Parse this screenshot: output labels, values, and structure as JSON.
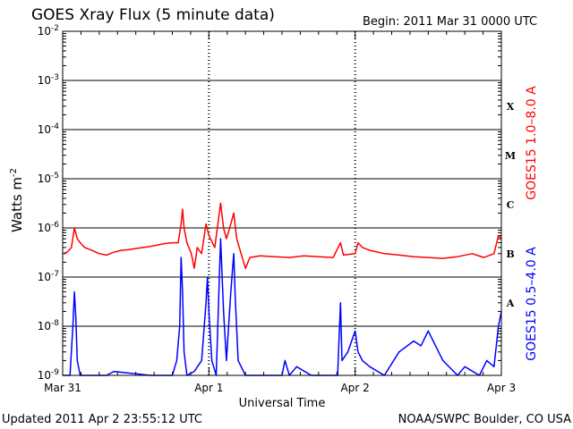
{
  "chart_data": {
    "type": "line",
    "title": "GOES Xray Flux (5 minute data)",
    "begin_label": "Begin:  2011 Mar 31 0000 UTC",
    "xlabel": "Universal Time",
    "ylabel_base": "Watts m",
    "ylabel_exp": "-2",
    "y_scale": "log",
    "ylim": [
      1e-09,
      0.01
    ],
    "grid": true,
    "y_ticks": [
      {
        "value": 0.01,
        "exp": "-2"
      },
      {
        "value": 0.001,
        "exp": "-3"
      },
      {
        "value": 0.0001,
        "exp": "-4"
      },
      {
        "value": 1e-05,
        "exp": "-5"
      },
      {
        "value": 1e-06,
        "exp": "-6"
      },
      {
        "value": 1e-07,
        "exp": "-7"
      },
      {
        "value": 1e-08,
        "exp": "-8"
      },
      {
        "value": 1e-09,
        "exp": "-9"
      }
    ],
    "tick_base": "10",
    "x_ticks": [
      {
        "day": 0,
        "label": "Mar 31"
      },
      {
        "day": 1,
        "label": "Apr 1"
      },
      {
        "day": 2,
        "label": "Apr 2"
      },
      {
        "day": 3,
        "label": "Apr 3"
      }
    ],
    "flare_classes": [
      {
        "label": "X",
        "value": 0.0003
      },
      {
        "label": "M",
        "value": 3e-05
      },
      {
        "label": "C",
        "value": 3e-06
      },
      {
        "label": "B",
        "value": 3e-07
      },
      {
        "label": "A",
        "value": 3e-08
      }
    ],
    "series": [
      {
        "name": "GOES15 1.0–8.0 A",
        "color": "#ff0000",
        "points": [
          [
            0.0,
            3e-07
          ],
          [
            0.03,
            3.2e-07
          ],
          [
            0.06,
            4e-07
          ],
          [
            0.08,
            1e-06
          ],
          [
            0.1,
            6e-07
          ],
          [
            0.12,
            5e-07
          ],
          [
            0.15,
            4e-07
          ],
          [
            0.2,
            3.5e-07
          ],
          [
            0.25,
            3e-07
          ],
          [
            0.3,
            2.8e-07
          ],
          [
            0.35,
            3.2e-07
          ],
          [
            0.4,
            3.5e-07
          ],
          [
            0.45,
            3.6e-07
          ],
          [
            0.5,
            3.8e-07
          ],
          [
            0.55,
            4e-07
          ],
          [
            0.6,
            4.2e-07
          ],
          [
            0.65,
            4.5e-07
          ],
          [
            0.7,
            4.8e-07
          ],
          [
            0.75,
            5e-07
          ],
          [
            0.79,
            5e-07
          ],
          [
            0.81,
            1.2e-06
          ],
          [
            0.82,
            2.4e-06
          ],
          [
            0.83,
            1e-06
          ],
          [
            0.85,
            5e-07
          ],
          [
            0.88,
            3e-07
          ],
          [
            0.9,
            1.5e-07
          ],
          [
            0.92,
            4e-07
          ],
          [
            0.95,
            3e-07
          ],
          [
            0.98,
            1.2e-06
          ],
          [
            1.0,
            7e-07
          ],
          [
            1.04,
            4e-07
          ],
          [
            1.08,
            3.2e-06
          ],
          [
            1.1,
            1e-06
          ],
          [
            1.12,
            6e-07
          ],
          [
            1.15,
            1.2e-06
          ],
          [
            1.17,
            2e-06
          ],
          [
            1.19,
            6e-07
          ],
          [
            1.22,
            3e-07
          ],
          [
            1.25,
            1.5e-07
          ],
          [
            1.28,
            2.5e-07
          ],
          [
            1.35,
            2.7e-07
          ],
          [
            1.45,
            2.6e-07
          ],
          [
            1.55,
            2.5e-07
          ],
          [
            1.65,
            2.7e-07
          ],
          [
            1.75,
            2.6e-07
          ],
          [
            1.85,
            2.5e-07
          ],
          [
            1.9,
            5e-07
          ],
          [
            1.92,
            2.8e-07
          ],
          [
            2.0,
            3e-07
          ],
          [
            2.02,
            5e-07
          ],
          [
            2.05,
            4e-07
          ],
          [
            2.1,
            3.5e-07
          ],
          [
            2.2,
            3e-07
          ],
          [
            2.3,
            2.8e-07
          ],
          [
            2.4,
            2.6e-07
          ],
          [
            2.5,
            2.5e-07
          ],
          [
            2.6,
            2.4e-07
          ],
          [
            2.7,
            2.6e-07
          ],
          [
            2.8,
            3e-07
          ],
          [
            2.88,
            2.5e-07
          ],
          [
            2.95,
            3e-07
          ],
          [
            2.98,
            7e-07
          ],
          [
            3.0,
            6e-07
          ]
        ]
      },
      {
        "name": "GOES15 0.5–4.0 A",
        "color": "#0000ff",
        "points": [
          [
            0.0,
            1e-09
          ],
          [
            0.05,
            1e-09
          ],
          [
            0.07,
            1e-08
          ],
          [
            0.08,
            5e-08
          ],
          [
            0.09,
            1.5e-08
          ],
          [
            0.1,
            2e-09
          ],
          [
            0.12,
            1e-09
          ],
          [
            0.3,
            1e-09
          ],
          [
            0.35,
            1.2e-09
          ],
          [
            0.6,
            1e-09
          ],
          [
            0.75,
            1e-09
          ],
          [
            0.78,
            2e-09
          ],
          [
            0.8,
            1e-08
          ],
          [
            0.81,
            2.5e-07
          ],
          [
            0.82,
            5e-08
          ],
          [
            0.83,
            3e-09
          ],
          [
            0.85,
            1e-09
          ],
          [
            0.9,
            1.2e-09
          ],
          [
            0.95,
            2e-09
          ],
          [
            0.98,
            3e-08
          ],
          [
            0.99,
            1e-07
          ],
          [
            1.0,
            2e-08
          ],
          [
            1.02,
            2e-09
          ],
          [
            1.05,
            1e-09
          ],
          [
            1.08,
            6e-07
          ],
          [
            1.1,
            2e-08
          ],
          [
            1.12,
            2e-09
          ],
          [
            1.15,
            5e-08
          ],
          [
            1.17,
            3e-07
          ],
          [
            1.18,
            4e-08
          ],
          [
            1.2,
            2e-09
          ],
          [
            1.25,
            1e-09
          ],
          [
            1.5,
            1e-09
          ],
          [
            1.52,
            2e-09
          ],
          [
            1.55,
            1e-09
          ],
          [
            1.6,
            1.5e-09
          ],
          [
            1.7,
            1e-09
          ],
          [
            1.88,
            1e-09
          ],
          [
            1.9,
            3e-08
          ],
          [
            1.91,
            2e-09
          ],
          [
            1.95,
            3e-09
          ],
          [
            2.0,
            8e-09
          ],
          [
            2.02,
            3e-09
          ],
          [
            2.05,
            2e-09
          ],
          [
            2.1,
            1.5e-09
          ],
          [
            2.2,
            1e-09
          ],
          [
            2.3,
            3e-09
          ],
          [
            2.4,
            5e-09
          ],
          [
            2.45,
            4e-09
          ],
          [
            2.5,
            8e-09
          ],
          [
            2.55,
            4e-09
          ],
          [
            2.6,
            2e-09
          ],
          [
            2.7,
            1e-09
          ],
          [
            2.75,
            1.5e-09
          ],
          [
            2.85,
            1e-09
          ],
          [
            2.9,
            2e-09
          ],
          [
            2.95,
            1.5e-09
          ],
          [
            2.98,
            1e-08
          ],
          [
            3.0,
            2e-08
          ]
        ]
      }
    ]
  },
  "footer": {
    "updated": "Updated 2011 Apr  2 23:55:12 UTC",
    "credit": "NOAA/SWPC Boulder, CO USA"
  }
}
